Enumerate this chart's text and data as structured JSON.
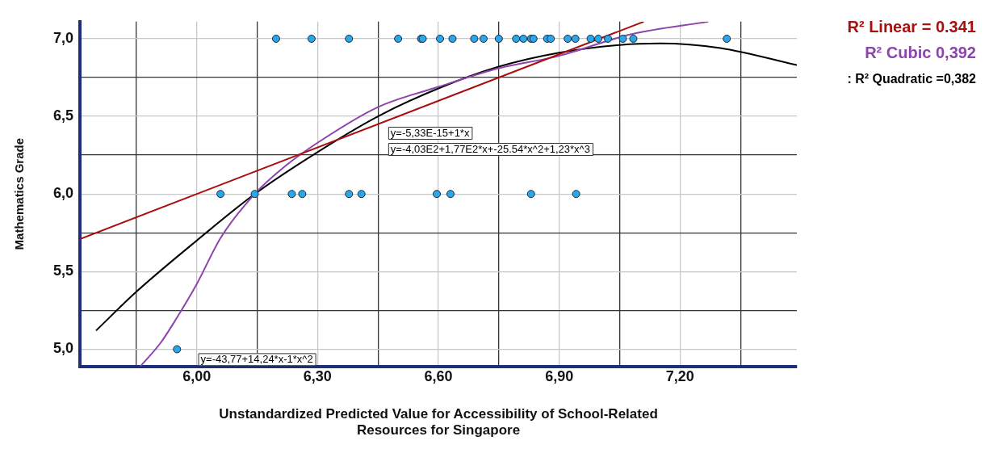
{
  "chart_data": {
    "type": "scatter",
    "xlabel": "Unstandardized Predicted Value for Accessibility of School-Related Resources for Singapore",
    "ylabel": "Mathematics Grade",
    "xlim": [
      5.71,
      7.49
    ],
    "ylim": [
      4.89,
      7.11
    ],
    "xticks": [
      {
        "value": 5.85,
        "label": null
      },
      {
        "value": 6.0,
        "label": "6,00"
      },
      {
        "value": 6.15,
        "label": null
      },
      {
        "value": 6.3,
        "label": "6,30"
      },
      {
        "value": 6.45,
        "label": null
      },
      {
        "value": 6.6,
        "label": "6,60"
      },
      {
        "value": 6.75,
        "label": null
      },
      {
        "value": 6.9,
        "label": "6,90"
      },
      {
        "value": 7.05,
        "label": null
      },
      {
        "value": 7.2,
        "label": "7,20"
      },
      {
        "value": 7.35,
        "label": null
      }
    ],
    "yticks": [
      {
        "value": 5.0,
        "label": "5,0"
      },
      {
        "value": 5.25,
        "label": null
      },
      {
        "value": 5.5,
        "label": "5,5"
      },
      {
        "value": 5.75,
        "label": null
      },
      {
        "value": 6.0,
        "label": "6,0"
      },
      {
        "value": 6.25,
        "label": null
      },
      {
        "value": 6.5,
        "label": "6,5"
      },
      {
        "value": 6.75,
        "label": null
      },
      {
        "value": 7.0,
        "label": "7,0"
      }
    ],
    "grid": true,
    "legend": "top right",
    "series": [
      {
        "marker": "circle",
        "color": "#2ba6e8",
        "x": [
          6.197,
          6.285,
          6.378,
          6.5,
          6.557,
          6.561,
          6.604,
          6.635,
          6.689,
          6.712,
          6.75,
          6.793,
          6.811,
          6.83,
          6.836,
          6.87,
          6.879,
          6.921,
          6.94,
          6.978,
          6.997,
          7.021,
          7.058,
          7.084,
          7.316,
          6.059,
          6.144,
          6.236,
          6.262,
          6.378,
          6.409,
          6.596,
          6.63,
          6.83,
          6.942,
          5.951
        ],
        "values": [
          7,
          7,
          7,
          7,
          7,
          7,
          7,
          7,
          7,
          7,
          7,
          7,
          7,
          7,
          7,
          7,
          7,
          7,
          7,
          7,
          7,
          7,
          7,
          7,
          7,
          6,
          6,
          6,
          6,
          6,
          6,
          6,
          6,
          6,
          6,
          5
        ]
      },
      {
        "type": "line",
        "name": "R² Linear = 0.341",
        "color": "#a80f0f",
        "x": [
          5.71,
          7.11
        ],
        "values": [
          5.71,
          7.11
        ]
      },
      {
        "type": "line",
        "name": "R² Cubic 0,392",
        "color": "#8e44ad",
        "x": [
          5.86,
          5.91,
          5.95,
          6.0,
          6.06,
          6.144,
          6.22,
          6.3,
          6.45,
          6.6,
          6.75,
          6.9,
          7.08,
          7.27
        ],
        "values": [
          4.89,
          5.04,
          5.2,
          5.42,
          5.72,
          6.0,
          6.18,
          6.33,
          6.56,
          6.69,
          6.81,
          6.89,
          7.03,
          7.11
        ]
      },
      {
        "type": "line",
        "name": ": R² Quadratic =0,382",
        "color": "#000000",
        "x": [
          5.75,
          5.85,
          6.0,
          6.144,
          6.3,
          6.45,
          6.6,
          6.75,
          6.9,
          7.05,
          7.15,
          7.3,
          7.49
        ],
        "values": [
          5.12,
          5.37,
          5.7,
          6.0,
          6.27,
          6.5,
          6.68,
          6.82,
          6.91,
          6.96,
          6.97,
          6.94,
          6.83
        ]
      }
    ],
    "annotations": [
      "y=-5,33E-15+1*x",
      "y=-4,03E2+1,77E2*x+-25.54*x^2+1,23*x^3",
      "y=-43,77+14,24*x-1*x^2"
    ]
  }
}
